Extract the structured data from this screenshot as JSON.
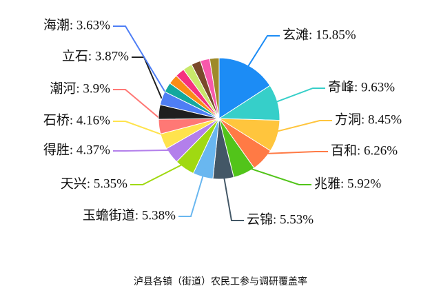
{
  "chart_data": {
    "type": "pie",
    "title": "泸县各镇（街道）农民工参与调研覆盖率",
    "labels": [
      "玄滩: 15.85%",
      "奇峰: 9.63%",
      "方洞: 8.45%",
      "百和: 6.26%",
      "兆雅: 5.92%",
      "云锦: 5.53%",
      "玉蟾街道: 5.38%",
      "天兴: 5.35%",
      "得胜: 4.37%",
      "石桥: 4.16%",
      "潮河: 3.9%",
      "立石: 3.87%",
      "海潮: 3.63%",
      null,
      null,
      null,
      null,
      null,
      null,
      null
    ],
    "values": [
      15.85,
      9.63,
      8.45,
      6.26,
      5.92,
      5.53,
      5.38,
      5.35,
      4.37,
      4.16,
      3.9,
      3.87,
      3.63,
      2.6,
      2.6,
      2.5,
      2.5,
      2.5,
      2.5,
      2.5
    ],
    "colors": [
      "#1c8cf5",
      "#36cfc9",
      "#ffc53d",
      "#ff7a45",
      "#52c41a",
      "#435766",
      "#69b7f0",
      "#a0d911",
      "#b37feb",
      "#ffe34d",
      "#ff7875",
      "#1f1f1f",
      "#4e7ef5",
      "#13a89e",
      "#fa8c16",
      "#f5317f",
      "#c9e86b",
      "#7a4a2a",
      "#f759ab",
      "#9e8a2a"
    ]
  }
}
